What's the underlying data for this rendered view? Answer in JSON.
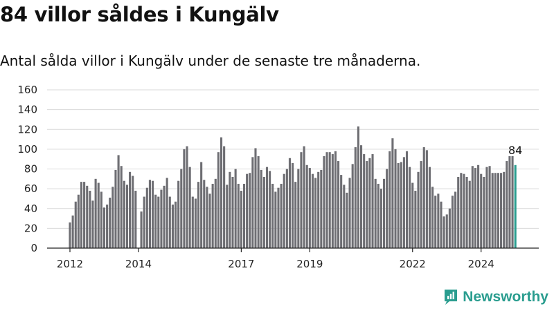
{
  "title": "84 villor såldes i Kungälv",
  "subtitle": "Antal sålda villor i Kungälv under de senaste tre månaderna.",
  "brand": {
    "name": "Newsworthy",
    "color": "#2a9d8f"
  },
  "colors": {
    "bar": "#6e6e73",
    "highlight": "#2a9d8f",
    "grid": "#d9d9d9"
  },
  "chart_data": {
    "type": "bar",
    "grid": true,
    "ylim": [
      0,
      160
    ],
    "yticks": [
      0,
      20,
      40,
      60,
      80,
      100,
      120,
      140,
      160
    ],
    "xticks": [
      {
        "label": "2012",
        "index": 0
      },
      {
        "label": "2014",
        "index": 24
      },
      {
        "label": "2017",
        "index": 60
      },
      {
        "label": "2019",
        "index": 84
      },
      {
        "label": "2022",
        "index": 120
      },
      {
        "label": "2024",
        "index": 144
      }
    ],
    "highlight_label": "84",
    "values": [
      26,
      33,
      47,
      54,
      67,
      67,
      63,
      58,
      48,
      70,
      66,
      57,
      41,
      44,
      51,
      62,
      79,
      94,
      83,
      68,
      64,
      77,
      73,
      58,
      null,
      37,
      52,
      61,
      69,
      68,
      54,
      52,
      59,
      63,
      71,
      52,
      44,
      47,
      68,
      80,
      100,
      103,
      82,
      52,
      50,
      67,
      87,
      69,
      62,
      55,
      65,
      70,
      97,
      112,
      103,
      64,
      77,
      72,
      80,
      65,
      58,
      65,
      75,
      76,
      92,
      101,
      93,
      79,
      72,
      82,
      78,
      65,
      57,
      61,
      65,
      75,
      80,
      91,
      86,
      67,
      80,
      97,
      103,
      84,
      81,
      75,
      71,
      77,
      79,
      93,
      97,
      97,
      95,
      98,
      88,
      74,
      64,
      56,
      71,
      85,
      102,
      123,
      104,
      95,
      88,
      91,
      95,
      70,
      65,
      60,
      70,
      80,
      98,
      111,
      100,
      86,
      87,
      92,
      98,
      82,
      66,
      58,
      77,
      88,
      102,
      99,
      82,
      62,
      53,
      55,
      47,
      32,
      34,
      40,
      53,
      57,
      72,
      76,
      75,
      72,
      68,
      83,
      81,
      84,
      75,
      72,
      82,
      83,
      76,
      76,
      76,
      76,
      77,
      88,
      93,
      93,
      84
    ]
  }
}
